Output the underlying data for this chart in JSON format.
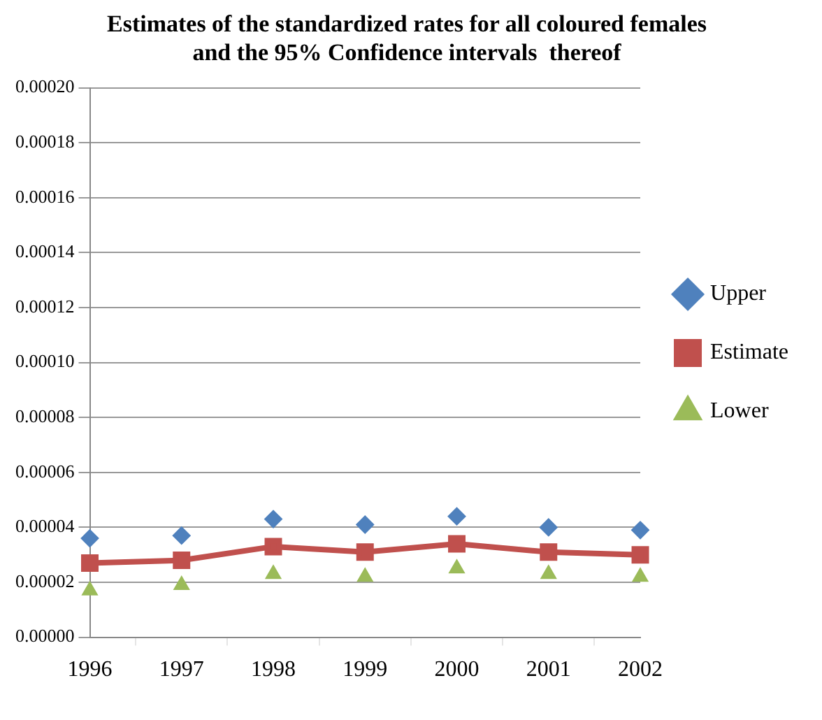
{
  "chart_data": {
    "type": "line",
    "title": "Estimates of the standardized rates for all coloured females\nand the 95% Confidence intervals  thereof",
    "categories": [
      "1996",
      "1997",
      "1998",
      "1999",
      "2000",
      "2001",
      "2002"
    ],
    "series": [
      {
        "name": "Upper",
        "type": "scatter",
        "marker": "diamond",
        "color": "#4f81bd",
        "values": [
          3.6e-05,
          3.7e-05,
          4.3e-05,
          4.1e-05,
          4.4e-05,
          4e-05,
          3.9e-05
        ]
      },
      {
        "name": "Estimate",
        "type": "line",
        "marker": "square",
        "color": "#c0504d",
        "values": [
          2.7e-05,
          2.8e-05,
          3.3e-05,
          3.1e-05,
          3.4e-05,
          3.1e-05,
          3e-05
        ]
      },
      {
        "name": "Lower",
        "type": "scatter",
        "marker": "triangle",
        "color": "#9bbb59",
        "values": [
          1.7e-05,
          1.9e-05,
          2.3e-05,
          2.2e-05,
          2.5e-05,
          2.3e-05,
          2.2e-05
        ]
      }
    ],
    "ylim": [
      0,
      0.0002
    ],
    "yticks": [
      {
        "value": 0,
        "label": "0.00000"
      },
      {
        "value": 2e-05,
        "label": "0.00002"
      },
      {
        "value": 4e-05,
        "label": "0.00004"
      },
      {
        "value": 6e-05,
        "label": "0.00006"
      },
      {
        "value": 8e-05,
        "label": "0.00008"
      },
      {
        "value": 0.0001,
        "label": "0.00010"
      },
      {
        "value": 0.00012,
        "label": "0.00012"
      },
      {
        "value": 0.00014,
        "label": "0.00014"
      },
      {
        "value": 0.00016,
        "label": "0.00016"
      },
      {
        "value": 0.00018,
        "label": "0.00018"
      },
      {
        "value": 0.0002,
        "label": "0.00020"
      }
    ],
    "grid": "y",
    "legend": "right"
  }
}
